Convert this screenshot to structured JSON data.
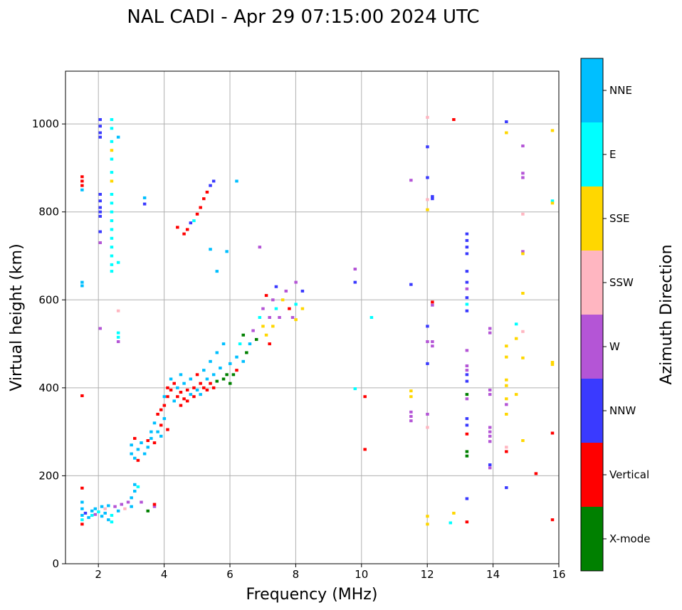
{
  "chart_data": {
    "type": "scatter",
    "title": "NAL CADI - Apr 29 07:15:00 2024 UTC",
    "xlabel": "Frequency (MHz)",
    "ylabel": "Virtual height (km)",
    "xlim": [
      1,
      16
    ],
    "ylim": [
      0,
      1120
    ],
    "xticks": [
      2,
      4,
      6,
      8,
      10,
      12,
      14,
      16
    ],
    "yticks": [
      0,
      200,
      400,
      600,
      800,
      1000
    ],
    "grid": true,
    "colorbar": {
      "label": "Azimuth Direction",
      "categories": [
        "X-mode",
        "Vertical",
        "NNW",
        "W",
        "SSW",
        "SSE",
        "E",
        "NNE"
      ],
      "colors": [
        "#008000",
        "#ff0000",
        "#3a3aff",
        "#b455d6",
        "#ffb6c1",
        "#ffd700",
        "#00ffff",
        "#00bfff"
      ]
    },
    "point_format": [
      "frequency_MHz",
      "height_km",
      "direction_index"
    ],
    "points": [
      [
        1.5,
        880,
        1
      ],
      [
        1.5,
        870,
        1
      ],
      [
        1.5,
        860,
        1
      ],
      [
        1.5,
        850,
        7
      ],
      [
        1.5,
        640,
        7
      ],
      [
        1.5,
        632,
        7
      ],
      [
        1.5,
        382,
        1
      ],
      [
        1.5,
        172,
        1
      ],
      [
        1.5,
        140,
        7
      ],
      [
        1.5,
        125,
        7
      ],
      [
        1.5,
        110,
        7
      ],
      [
        1.5,
        100,
        6
      ],
      [
        1.5,
        90,
        1
      ],
      [
        1.6,
        115,
        2
      ],
      [
        1.7,
        105,
        7
      ],
      [
        1.8,
        120,
        7
      ],
      [
        1.8,
        110,
        6
      ],
      [
        1.9,
        125,
        7
      ],
      [
        1.9,
        112,
        3
      ],
      [
        2.0,
        118,
        6
      ],
      [
        2.1,
        130,
        7
      ],
      [
        2.1,
        108,
        7
      ],
      [
        2.2,
        125,
        4
      ],
      [
        2.2,
        115,
        7
      ],
      [
        2.3,
        132,
        7
      ],
      [
        2.3,
        100,
        7
      ],
      [
        2.4,
        110,
        6
      ],
      [
        2.4,
        95,
        6
      ],
      [
        2.5,
        130,
        3
      ],
      [
        2.6,
        120,
        7
      ],
      [
        2.7,
        135,
        3
      ],
      [
        2.8,
        125,
        4
      ],
      [
        2.9,
        140,
        3
      ],
      [
        3.0,
        150,
        7
      ],
      [
        3.0,
        130,
        7
      ],
      [
        3.1,
        165,
        7
      ],
      [
        3.1,
        180,
        7
      ],
      [
        3.2,
        175,
        6
      ],
      [
        3.3,
        140,
        3
      ],
      [
        3.5,
        120,
        0
      ],
      [
        3.7,
        130,
        3
      ],
      [
        3.7,
        135,
        1
      ],
      [
        2.05,
        1010,
        2
      ],
      [
        2.05,
        995,
        2
      ],
      [
        2.05,
        980,
        2
      ],
      [
        2.05,
        970,
        2
      ],
      [
        2.05,
        840,
        2
      ],
      [
        2.05,
        825,
        2
      ],
      [
        2.05,
        810,
        2
      ],
      [
        2.05,
        800,
        2
      ],
      [
        2.05,
        790,
        2
      ],
      [
        2.05,
        755,
        2
      ],
      [
        2.05,
        730,
        3
      ],
      [
        2.05,
        535,
        3
      ],
      [
        2.4,
        1010,
        6
      ],
      [
        2.4,
        990,
        6
      ],
      [
        2.4,
        960,
        6
      ],
      [
        2.4,
        940,
        5
      ],
      [
        2.4,
        920,
        6
      ],
      [
        2.4,
        890,
        6
      ],
      [
        2.4,
        870,
        5
      ],
      [
        2.4,
        840,
        6
      ],
      [
        2.4,
        820,
        6
      ],
      [
        2.4,
        800,
        6
      ],
      [
        2.4,
        780,
        6
      ],
      [
        2.4,
        760,
        6
      ],
      [
        2.4,
        740,
        6
      ],
      [
        2.4,
        720,
        6
      ],
      [
        2.4,
        700,
        6
      ],
      [
        2.4,
        680,
        6
      ],
      [
        2.4,
        665,
        6
      ],
      [
        2.6,
        970,
        7
      ],
      [
        2.6,
        685,
        6
      ],
      [
        2.6,
        575,
        4
      ],
      [
        2.6,
        525,
        6
      ],
      [
        2.6,
        515,
        6
      ],
      [
        2.6,
        505,
        3
      ],
      [
        3.4,
        832,
        7
      ],
      [
        3.4,
        818,
        2
      ],
      [
        3.0,
        270,
        7
      ],
      [
        3.0,
        250,
        7
      ],
      [
        3.1,
        285,
        1
      ],
      [
        3.1,
        240,
        7
      ],
      [
        3.2,
        260,
        7
      ],
      [
        3.2,
        235,
        1
      ],
      [
        3.3,
        275,
        7
      ],
      [
        3.4,
        250,
        7
      ],
      [
        3.5,
        280,
        1
      ],
      [
        3.5,
        265,
        7
      ],
      [
        3.6,
        300,
        7
      ],
      [
        3.6,
        285,
        7
      ],
      [
        3.7,
        320,
        7
      ],
      [
        3.7,
        275,
        1
      ],
      [
        3.8,
        340,
        1
      ],
      [
        3.8,
        300,
        7
      ],
      [
        3.9,
        350,
        1
      ],
      [
        3.9,
        315,
        1
      ],
      [
        3.9,
        290,
        7
      ],
      [
        4.0,
        380,
        7
      ],
      [
        4.0,
        360,
        1
      ],
      [
        4.0,
        330,
        7
      ],
      [
        4.1,
        400,
        1
      ],
      [
        4.1,
        380,
        1
      ],
      [
        4.1,
        305,
        1
      ],
      [
        4.2,
        420,
        7
      ],
      [
        4.2,
        395,
        1
      ],
      [
        4.3,
        410,
        1
      ],
      [
        4.3,
        370,
        7
      ],
      [
        4.4,
        400,
        7
      ],
      [
        4.4,
        380,
        1
      ],
      [
        4.5,
        430,
        7
      ],
      [
        4.5,
        390,
        1
      ],
      [
        4.5,
        360,
        1
      ],
      [
        4.6,
        410,
        7
      ],
      [
        4.6,
        375,
        1
      ],
      [
        4.7,
        395,
        1
      ],
      [
        4.7,
        370,
        1
      ],
      [
        4.8,
        420,
        7
      ],
      [
        4.8,
        385,
        7
      ],
      [
        4.9,
        400,
        1
      ],
      [
        4.9,
        380,
        1
      ],
      [
        5.0,
        430,
        1
      ],
      [
        5.0,
        395,
        7
      ],
      [
        5.1,
        410,
        1
      ],
      [
        5.1,
        385,
        7
      ],
      [
        5.2,
        440,
        7
      ],
      [
        5.2,
        400,
        1
      ],
      [
        5.3,
        420,
        7
      ],
      [
        5.3,
        395,
        1
      ],
      [
        5.4,
        460,
        7
      ],
      [
        5.4,
        410,
        1
      ],
      [
        5.5,
        430,
        7
      ],
      [
        5.5,
        400,
        1
      ],
      [
        5.6,
        480,
        7
      ],
      [
        5.6,
        415,
        0
      ],
      [
        5.7,
        445,
        7
      ],
      [
        5.8,
        420,
        0
      ],
      [
        5.8,
        500,
        7
      ],
      [
        5.9,
        430,
        0
      ],
      [
        6.0,
        455,
        7
      ],
      [
        6.0,
        410,
        0
      ],
      [
        6.1,
        430,
        0
      ],
      [
        6.2,
        470,
        7
      ],
      [
        6.2,
        440,
        1
      ],
      [
        6.3,
        500,
        6
      ],
      [
        6.4,
        460,
        7
      ],
      [
        6.4,
        520,
        0
      ],
      [
        6.5,
        480,
        0
      ],
      [
        6.6,
        500,
        7
      ],
      [
        6.7,
        530,
        3
      ],
      [
        6.8,
        510,
        0
      ],
      [
        6.9,
        560,
        6
      ],
      [
        7.0,
        540,
        5
      ],
      [
        7.0,
        580,
        3
      ],
      [
        7.1,
        520,
        5
      ],
      [
        7.1,
        610,
        1
      ],
      [
        7.2,
        560,
        3
      ],
      [
        7.2,
        500,
        1
      ],
      [
        7.3,
        600,
        3
      ],
      [
        7.3,
        540,
        5
      ],
      [
        7.4,
        630,
        2
      ],
      [
        7.4,
        580,
        6
      ],
      [
        7.5,
        560,
        3
      ],
      [
        7.6,
        600,
        5
      ],
      [
        7.7,
        620,
        3
      ],
      [
        7.8,
        580,
        1
      ],
      [
        7.9,
        560,
        3
      ],
      [
        8.0,
        590,
        6
      ],
      [
        8.0,
        640,
        3
      ],
      [
        8.2,
        580,
        5
      ],
      [
        8.2,
        620,
        2
      ],
      [
        8.0,
        555,
        5
      ],
      [
        4.4,
        765,
        1
      ],
      [
        4.6,
        750,
        1
      ],
      [
        4.7,
        760,
        1
      ],
      [
        4.8,
        775,
        2
      ],
      [
        4.9,
        780,
        6
      ],
      [
        5.0,
        795,
        1
      ],
      [
        5.1,
        810,
        1
      ],
      [
        5.2,
        830,
        1
      ],
      [
        5.3,
        845,
        1
      ],
      [
        5.4,
        860,
        2
      ],
      [
        5.5,
        870,
        2
      ],
      [
        5.4,
        715,
        7
      ],
      [
        5.9,
        710,
        7
      ],
      [
        6.2,
        870,
        7
      ],
      [
        5.6,
        665,
        7
      ],
      [
        6.9,
        720,
        3
      ],
      [
        9.8,
        670,
        3
      ],
      [
        9.8,
        640,
        2
      ],
      [
        9.8,
        398,
        6
      ],
      [
        10.1,
        380,
        1
      ],
      [
        10.1,
        260,
        1
      ],
      [
        10.3,
        560,
        6
      ],
      [
        11.5,
        872,
        3
      ],
      [
        11.5,
        635,
        2
      ],
      [
        11.5,
        393,
        5
      ],
      [
        11.5,
        380,
        5
      ],
      [
        11.5,
        345,
        3
      ],
      [
        11.5,
        335,
        3
      ],
      [
        11.5,
        325,
        3
      ],
      [
        12.0,
        1015,
        4
      ],
      [
        12.0,
        948,
        2
      ],
      [
        12.0,
        878,
        2
      ],
      [
        12.0,
        828,
        4
      ],
      [
        12.0,
        805,
        5
      ],
      [
        12.0,
        540,
        2
      ],
      [
        12.0,
        505,
        3
      ],
      [
        12.0,
        455,
        2
      ],
      [
        12.0,
        340,
        3
      ],
      [
        12.0,
        310,
        4
      ],
      [
        12.0,
        108,
        5
      ],
      [
        12.0,
        90,
        5
      ],
      [
        12.15,
        835,
        2
      ],
      [
        12.15,
        830,
        2
      ],
      [
        12.15,
        595,
        1
      ],
      [
        12.15,
        588,
        3
      ],
      [
        12.15,
        505,
        3
      ],
      [
        12.15,
        495,
        3
      ],
      [
        12.7,
        93,
        6
      ],
      [
        12.8,
        1010,
        1
      ],
      [
        12.8,
        115,
        5
      ],
      [
        13.2,
        750,
        2
      ],
      [
        13.2,
        735,
        2
      ],
      [
        13.2,
        720,
        2
      ],
      [
        13.2,
        705,
        2
      ],
      [
        13.2,
        665,
        2
      ],
      [
        13.2,
        640,
        2
      ],
      [
        13.2,
        625,
        3
      ],
      [
        13.2,
        605,
        2
      ],
      [
        13.2,
        590,
        6
      ],
      [
        13.2,
        575,
        2
      ],
      [
        13.2,
        485,
        3
      ],
      [
        13.2,
        450,
        3
      ],
      [
        13.2,
        440,
        3
      ],
      [
        13.2,
        430,
        2
      ],
      [
        13.2,
        415,
        2
      ],
      [
        13.2,
        385,
        0
      ],
      [
        13.2,
        375,
        3
      ],
      [
        13.2,
        330,
        2
      ],
      [
        13.2,
        315,
        2
      ],
      [
        13.2,
        295,
        1
      ],
      [
        13.2,
        255,
        0
      ],
      [
        13.2,
        245,
        0
      ],
      [
        13.2,
        148,
        2
      ],
      [
        13.2,
        95,
        1
      ],
      [
        13.9,
        535,
        3
      ],
      [
        13.9,
        525,
        3
      ],
      [
        13.9,
        395,
        3
      ],
      [
        13.9,
        385,
        3
      ],
      [
        13.9,
        310,
        3
      ],
      [
        13.9,
        300,
        3
      ],
      [
        13.9,
        290,
        3
      ],
      [
        13.9,
        278,
        3
      ],
      [
        13.9,
        225,
        2
      ],
      [
        13.9,
        218,
        3
      ],
      [
        14.4,
        1005,
        2
      ],
      [
        14.4,
        980,
        5
      ],
      [
        14.4,
        495,
        5
      ],
      [
        14.4,
        470,
        5
      ],
      [
        14.4,
        418,
        5
      ],
      [
        14.4,
        405,
        5
      ],
      [
        14.4,
        375,
        5
      ],
      [
        14.4,
        362,
        3
      ],
      [
        14.4,
        340,
        5
      ],
      [
        14.4,
        265,
        4
      ],
      [
        14.4,
        255,
        1
      ],
      [
        14.4,
        173,
        2
      ],
      [
        14.7,
        545,
        6
      ],
      [
        14.7,
        512,
        5
      ],
      [
        14.7,
        385,
        5
      ],
      [
        14.9,
        950,
        3
      ],
      [
        14.9,
        888,
        3
      ],
      [
        14.9,
        878,
        3
      ],
      [
        14.9,
        795,
        4
      ],
      [
        14.9,
        710,
        3
      ],
      [
        14.9,
        705,
        5
      ],
      [
        14.9,
        615,
        5
      ],
      [
        14.9,
        528,
        4
      ],
      [
        14.9,
        468,
        5
      ],
      [
        14.9,
        280,
        5
      ],
      [
        15.3,
        205,
        1
      ],
      [
        15.8,
        985,
        5
      ],
      [
        15.8,
        825,
        6
      ],
      [
        15.8,
        820,
        5
      ],
      [
        15.8,
        458,
        5
      ],
      [
        15.8,
        453,
        5
      ],
      [
        15.8,
        297,
        1
      ],
      [
        15.8,
        100,
        1
      ]
    ]
  }
}
